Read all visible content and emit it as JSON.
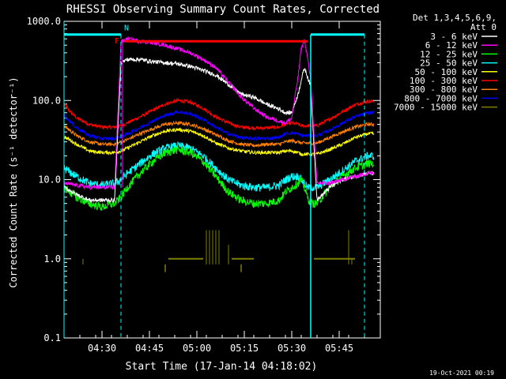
{
  "chart_data": {
    "type": "line",
    "title": "RHESSI Observing Summary Count Rates, Corrected",
    "xlabel": "Start Time (17-Jan-14 04:18:02)",
    "ylabel": "Corrected Count Rate (s⁻¹ detector⁻¹)",
    "yscale": "log",
    "ylim": [
      0.1,
      1000
    ],
    "xlim_minutes": [
      0,
      100
    ],
    "x_ticks": [
      {
        "min": 12,
        "label": "04:30"
      },
      {
        "min": 27,
        "label": "04:45"
      },
      {
        "min": 42,
        "label": "05:00"
      },
      {
        "min": 57,
        "label": "05:15"
      },
      {
        "min": 72,
        "label": "05:30"
      },
      {
        "min": 87,
        "label": "05:45"
      }
    ],
    "y_ticks": [
      {
        "value": 1000,
        "label": "1000.0"
      },
      {
        "value": 100,
        "label": "100.0"
      },
      {
        "value": 10,
        "label": "10.0"
      },
      {
        "value": 1,
        "label": "1.0"
      },
      {
        "value": 0.1,
        "label": "0.1"
      }
    ],
    "legend_header": [
      "Det 1,3,4,5,6,9,",
      "Att 0"
    ],
    "x": [
      0,
      4,
      8,
      12,
      16,
      18,
      20,
      24,
      28,
      32,
      36,
      40,
      44,
      48,
      52,
      56,
      60,
      64,
      68,
      70,
      72,
      74,
      75,
      76,
      77,
      78,
      80,
      84,
      88,
      92,
      96,
      98
    ],
    "series": [
      {
        "name": "3 - 6 keV",
        "color": "#ffffff",
        "values": [
          8,
          6.5,
          5.5,
          5.5,
          5.5,
          300,
          330,
          330,
          310,
          300,
          290,
          270,
          240,
          210,
          160,
          120,
          110,
          90,
          78,
          70,
          70,
          120,
          180,
          260,
          200,
          150,
          5.5,
          8,
          10,
          11,
          12,
          12
        ]
      },
      {
        "name": "6 - 12 keV",
        "color": "#ff00ff",
        "values": [
          9,
          8.5,
          8,
          8,
          8,
          550,
          600,
          560,
          540,
          500,
          450,
          400,
          330,
          260,
          170,
          110,
          80,
          62,
          55,
          52,
          60,
          200,
          450,
          580,
          350,
          180,
          9,
          9,
          10,
          11,
          12,
          12
        ]
      },
      {
        "name": "12 - 25 keV",
        "color": "#00ff00",
        "values": [
          8,
          6,
          5,
          4.5,
          5,
          6,
          8,
          12,
          17,
          22,
          24,
          22,
          17,
          11,
          7,
          5.5,
          5,
          5,
          5.5,
          7,
          8,
          9,
          10,
          8,
          6,
          5,
          5,
          8,
          11,
          14,
          16,
          16
        ]
      },
      {
        "name": "25 - 50 keV",
        "color": "#00ffff",
        "values": [
          14,
          11,
          9,
          8.5,
          9,
          10,
          12,
          16,
          21,
          25,
          27,
          25,
          20,
          14,
          10,
          8.5,
          8,
          8,
          8.5,
          10,
          11,
          11,
          10,
          9,
          8,
          8,
          8,
          10,
          13,
          17,
          20,
          20
        ]
      },
      {
        "name": "50 - 100 keV",
        "color": "#ffff00",
        "values": [
          35,
          28,
          23,
          22,
          22,
          23,
          25,
          30,
          36,
          41,
          43,
          41,
          36,
          29,
          25,
          23,
          22,
          22,
          22,
          23,
          23,
          22,
          21,
          21,
          21,
          21,
          21,
          24,
          28,
          34,
          38,
          38
        ]
      },
      {
        "name": "100 - 300 keV",
        "color": "#ff0000",
        "values": [
          88,
          60,
          50,
          46,
          46,
          48,
          52,
          62,
          75,
          90,
          100,
          95,
          80,
          62,
          52,
          46,
          45,
          45,
          46,
          50,
          52,
          50,
          48,
          48,
          48,
          48,
          48,
          58,
          72,
          88,
          98,
          98
        ]
      },
      {
        "name": "300 - 800 keV",
        "color": "#ff8000",
        "values": [
          48,
          36,
          30,
          28,
          28,
          30,
          32,
          38,
          44,
          50,
          52,
          50,
          44,
          37,
          31,
          28,
          27,
          28,
          28,
          30,
          31,
          30,
          29,
          29,
          29,
          29,
          29,
          34,
          40,
          46,
          50,
          50
        ]
      },
      {
        "name": "800 - 7000 keV",
        "color": "#0000ff",
        "values": [
          65,
          45,
          36,
          33,
          33,
          35,
          38,
          45,
          55,
          65,
          72,
          68,
          58,
          46,
          38,
          34,
          33,
          33,
          34,
          38,
          39,
          38,
          36,
          36,
          36,
          36,
          36,
          42,
          52,
          62,
          70,
          70
        ]
      },
      {
        "name": "7000 - 15000 keV",
        "color": "#808000",
        "values": [
          null,
          null,
          null,
          null,
          null,
          null,
          null,
          null,
          null,
          null,
          null,
          null,
          null,
          null,
          null,
          null,
          null,
          null,
          null,
          null,
          null,
          null,
          null,
          null,
          null,
          null,
          null,
          null,
          null,
          null,
          null,
          null
        ]
      }
    ],
    "flag_labels": {
      "f": "F",
      "n": "N"
    },
    "bar_7000_keV_note": ""
  },
  "footer_timestamp": "19-Oct-2021 00:19"
}
